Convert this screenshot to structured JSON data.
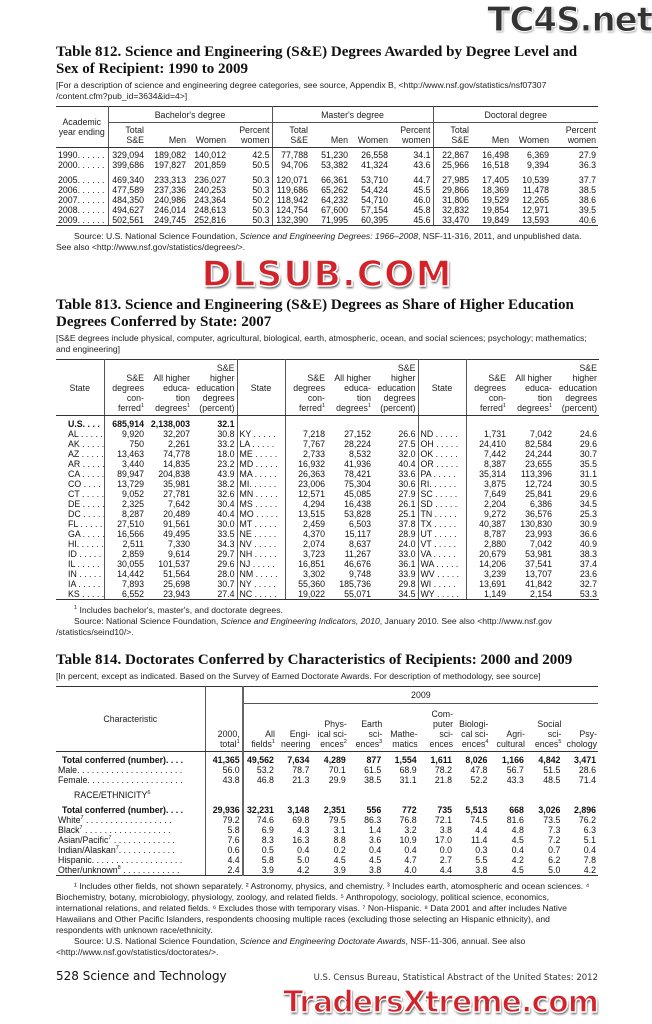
{
  "watermarks": {
    "top": "TC4S.net",
    "middle": "DLSUB.COM",
    "bottom": "TradersXtreme.com"
  },
  "t812": {
    "title": "Table 812. Science and Engineering (S&E) Degrees Awarded by Degree Level and Sex of Recipient: 1990 to 2009",
    "note": "[For a description of science and engineering degree categories, see source, Appendix B, <http://www.nsf.gov/statistics/nsf07307 /content.cfm?pub_id=3634&id=4>]",
    "stub_header": "Academic year ending",
    "groups": [
      "Bachelor's degree",
      "Master's degree",
      "Doctoral degree"
    ],
    "subcols": [
      "Total S&E",
      "Men",
      "Women",
      "Percent women"
    ],
    "rows": [
      [
        "1990. . . . . .",
        "329,094",
        "189,082",
        "140,012",
        "42.5",
        "77,788",
        "51,230",
        "26,558",
        "34.1",
        "22,867",
        "16,498",
        "6,369",
        "27.9"
      ],
      [
        "2000. . . . . .",
        "399,686",
        "197,827",
        "201,859",
        "50.5",
        "94,706",
        "53,382",
        "41,324",
        "43.6",
        "25,966",
        "16,518",
        "9,394",
        "36.3"
      ],
      [
        "2005. . . . . .",
        "469,340",
        "233,313",
        "236,027",
        "50.3",
        "120,071",
        "66,361",
        "53,710",
        "44.7",
        "27,985",
        "17,405",
        "10,539",
        "37.7"
      ],
      [
        "2006. . . . . .",
        "477,589",
        "237,336",
        "240,253",
        "50.3",
        "119,686",
        "65,262",
        "54,424",
        "45.5",
        "29,866",
        "18,369",
        "11,478",
        "38.5"
      ],
      [
        "2007. . . . . .",
        "484,350",
        "240,986",
        "243,364",
        "50.2",
        "118,942",
        "64,232",
        "54,710",
        "46.0",
        "31,806",
        "19,529",
        "12,265",
        "38.6"
      ],
      [
        "2008. . . . . .",
        "494,627",
        "246,014",
        "248,613",
        "50.3",
        "124,754",
        "67,600",
        "57,154",
        "45.8",
        "32,832",
        "19,854",
        "12,971",
        "39.5"
      ],
      [
        "2009. . . . . .",
        "502,561",
        "249,745",
        "252,816",
        "50.3",
        "132,390",
        "71,995",
        "60,395",
        "45.6",
        "33,470",
        "19,849",
        "13,593",
        "40.6"
      ]
    ],
    "source_prefix": "Source: U.S. National Science Foundation, ",
    "source_title": "Science and Engineering Degrees: 1966–2008",
    "source_suffix": ", NSF-11-316, 2011, and unpublished data. See also <http://www.nsf.gov/statistics/degrees/>."
  },
  "t813": {
    "title": "Table 813. Science and Engineering (S&E) Degrees as Share of Higher Education Degrees Conferred by State: 2007",
    "note": "[S&E degrees include physical, computer, agricultural, biological, earth, atmospheric, ocean, and social sciences; psychology; mathematics; and engineering]",
    "headers": {
      "state": "State",
      "se": "S&E degrees con- ferred",
      "all": "All higher educa- tion degrees",
      "pct": "S&E higher education degrees (percent)",
      "fn": "1"
    },
    "us": [
      "U.S. . . .",
      "685,914",
      "2,138,003",
      "32.1"
    ],
    "rows": [
      [
        "AL . . . . .",
        "9,920",
        "32,207",
        "30.8",
        "KY . . . . .",
        "7,218",
        "27,152",
        "26.6",
        "ND . . . . .",
        "1,731",
        "7,042",
        "24.6"
      ],
      [
        "AK . . . . .",
        "750",
        "2,261",
        "33.2",
        "LA . . . . .",
        "7,767",
        "28,224",
        "27.5",
        "OH . . . . .",
        "24,410",
        "82,584",
        "29.6"
      ],
      [
        "AZ . . . . .",
        "13,463",
        "74,778",
        "18.0",
        "ME . . . . .",
        "2,733",
        "8,532",
        "32.0",
        "OK . . . . .",
        "7,442",
        "24,244",
        "30.7"
      ],
      [
        "AR . . . . .",
        "3,440",
        "14,835",
        "23.2",
        "MD . . . . .",
        "16,932",
        "41,936",
        "40.4",
        "OR . . . . .",
        "8,387",
        "23,655",
        "35.5"
      ],
      [
        "CA . . . . .",
        "89,947",
        "204,838",
        "43.9",
        "MA . . . . .",
        "26,363",
        "78,421",
        "33.6",
        "PA . . . . .",
        "35,314",
        "113,396",
        "31.1"
      ],
      [
        "CO . . . . .",
        "13,729",
        "35,981",
        "38.2",
        "MI. . . . . .",
        "23,006",
        "75,304",
        "30.6",
        "RI. . . . . .",
        "3,875",
        "12,724",
        "30.5"
      ],
      [
        "CT . . . . .",
        "9,052",
        "27,781",
        "32.6",
        "MN . . . . .",
        "12,571",
        "45,085",
        "27.9",
        "SC . . . . .",
        "7,649",
        "25,841",
        "29.6"
      ],
      [
        "DE . . . . .",
        "2,325",
        "7,642",
        "30.4",
        "MS . . . . .",
        "4,294",
        "16,438",
        "26.1",
        "SD . . . . .",
        "2,204",
        "6,386",
        "34.5"
      ],
      [
        "DC . . . . .",
        "8,287",
        "20,489",
        "40.4",
        "MO . . . . .",
        "13,515",
        "53,828",
        "25.1",
        "TN . . . . .",
        "9,272",
        "36,576",
        "25.3"
      ],
      [
        "FL . . . . .",
        "27,510",
        "91,561",
        "30.0",
        "MT . . . . .",
        "2,459",
        "6,503",
        "37.8",
        "TX . . . . .",
        "40,387",
        "130,830",
        "30.9"
      ],
      [
        "GA . . . . .",
        "16,566",
        "49,495",
        "33.5",
        "NE . . . . .",
        "4,370",
        "15,117",
        "28.9",
        "UT . . . . .",
        "8,787",
        "23,993",
        "36.6"
      ],
      [
        "HI. . . . . .",
        "2,511",
        "7,330",
        "34.3",
        "NV . . . . .",
        "2,074",
        "8,637",
        "24.0",
        "VT . . . . .",
        "2,880",
        "7,042",
        "40.9"
      ],
      [
        "ID . . . . .",
        "2,859",
        "9,614",
        "29.7",
        "NH . . . . .",
        "3,723",
        "11,267",
        "33.0",
        "VA . . . . .",
        "20,679",
        "53,981",
        "38.3"
      ],
      [
        "IL . . . . .",
        "30,055",
        "101,537",
        "29.6",
        "NJ . . . . .",
        "16,851",
        "46,676",
        "36.1",
        "WA . . . . .",
        "14,206",
        "37,541",
        "37.4"
      ],
      [
        "IN . . . . .",
        "14,442",
        "51,564",
        "28.0",
        "NM . . . . .",
        "3,302",
        "9,748",
        "33.9",
        "WV . . . . .",
        "3,239",
        "13,707",
        "23.6"
      ],
      [
        "IA . . . . .",
        "7,893",
        "25,698",
        "30.7",
        "NY . . . . .",
        "55,360",
        "185,736",
        "29.8",
        "WI . . . . .",
        "13,691",
        "41,842",
        "32.7"
      ],
      [
        "KS . . . . .",
        "6,552",
        "23,943",
        "27.4",
        "NC . . . . .",
        "19,022",
        "55,071",
        "34.5",
        "WY . . . . .",
        "1,149",
        "2,154",
        "53.3"
      ]
    ],
    "footnote": "Includes bachelor's, master's, and doctorate degrees.",
    "footnote_mark": "1",
    "source_prefix": "Source: National Science Foundation, ",
    "source_title": "Science and Engineering Indicators, 2010",
    "source_suffix": ", January 2010. See also <http://www.nsf.gov /statistics/seind10/>."
  },
  "t814": {
    "title": "Table 814. Doctorates Conferred by Characteristics of Recipients: 2000 and 2009",
    "note": "[In percent, except as indicated. Based on the Survey of Earned Doctorate Awards. For description of methodology, see source]",
    "stub_header": "Characteristic",
    "year_group": "2009",
    "cols": [
      {
        "label": "2000, total",
        "fn": "1"
      },
      {
        "label": "All fields",
        "fn": "1"
      },
      {
        "label": "Engi- neering",
        "fn": ""
      },
      {
        "label": "Phys- ical sci- ences",
        "fn": "2"
      },
      {
        "label": "Earth sci- ences",
        "fn": "3"
      },
      {
        "label": "Mathe- matics",
        "fn": ""
      },
      {
        "label": "Com- puter sci- ences",
        "fn": ""
      },
      {
        "label": "Biologi- cal sci- ences",
        "fn": "4"
      },
      {
        "label": "Agri- cultural",
        "fn": ""
      },
      {
        "label": "Social sci- ences",
        "fn": "5"
      },
      {
        "label": "Psy- chology",
        "fn": ""
      }
    ],
    "rows": [
      {
        "label": "Total conferred (number). . . .",
        "bold": true,
        "values": [
          "41,365",
          "49,562",
          "7,634",
          "4,289",
          "877",
          "1,554",
          "1,611",
          "8,026",
          "1,166",
          "4,842",
          "3,471"
        ]
      },
      {
        "label": "Male. . . . . . . . . . . . . . . . . . . . . .",
        "values": [
          "56.0",
          "53.2",
          "78.7",
          "70.1",
          "61.5",
          "68.9",
          "78.2",
          "47.8",
          "56.7",
          "51.5",
          "28.6"
        ]
      },
      {
        "label": "Female. . . . . . . . . . . . . . . . . . . .",
        "values": [
          "43.8",
          "46.8",
          "21.3",
          "29.9",
          "38.5",
          "31.1",
          "21.8",
          "52.2",
          "43.3",
          "48.5",
          "71.4"
        ]
      },
      {
        "label": "RACE/ETHNICITY",
        "fn": "6",
        "section": true,
        "values": []
      },
      {
        "label": "Total conferred (number). . . .",
        "bold": true,
        "values": [
          "29,936",
          "32,231",
          "3,148",
          "2,351",
          "556",
          "772",
          "735",
          "5,513",
          "668",
          "3,026",
          "2,896"
        ]
      },
      {
        "label": "White",
        "fn": "7",
        "dots": " . . . . . . . . . . . . . . . . . .",
        "values": [
          "79.2",
          "74.6",
          "69.8",
          "79.5",
          "86.3",
          "76.8",
          "72.1",
          "74.5",
          "81.6",
          "73.5",
          "76.2"
        ]
      },
      {
        "label": "Black",
        "fn": "7",
        "dots": " . . . . . . . . . . . . . . . . . .",
        "values": [
          "5.8",
          "6.9",
          "4.3",
          "3.1",
          "1.4",
          "3.2",
          "3.8",
          "4.4",
          "4.8",
          "7.3",
          "6.3"
        ]
      },
      {
        "label": "Asian/Pacific",
        "fn": "7",
        "dots": " . . . . . . . . . . . . .",
        "values": [
          "7.6",
          "8.3",
          "16.3",
          "8.8",
          "3.6",
          "10.9",
          "17.0",
          "11.4",
          "4.5",
          "7.2",
          "5.1"
        ]
      },
      {
        "label": "Indian/Alaskan",
        "fn": "7",
        "dots": ". . . . . . . . . . . .",
        "values": [
          "0.6",
          "0.5",
          "0.4",
          "0.2",
          "0.4",
          "0.4",
          "0.0",
          "0.3",
          "0.4",
          "0.7",
          "0.4"
        ]
      },
      {
        "label": "Hispanic. . . . . . . . . . . . . . . . . . .",
        "values": [
          "4.4",
          "5.8",
          "5.0",
          "4.5",
          "4.5",
          "4.7",
          "2.7",
          "5.5",
          "4.2",
          "6.2",
          "7.8"
        ]
      },
      {
        "label": "Other/unknown",
        "fn": "8",
        "dots": " . . . . . . . . . . . .",
        "values": [
          "2.4",
          "3.9",
          "4.2",
          "3.9",
          "3.8",
          "4.0",
          "4.4",
          "3.8",
          "4.5",
          "5.0",
          "4.2"
        ]
      }
    ],
    "footnotes": "¹ Includes other fields, not shown separately. ² Astronomy, physics, and chemistry. ³ Includes earth, atomospheric and ocean sciences. ⁴ Biochemistry, botany, microbiology, physiology, zoology, and related fields. ⁵ Anthropology, sociology, political science, economics, international relations, and related fields. ⁶ Excludes those with temporary visas. ⁷ Non-Hispanic. ⁸ Data 2001 and after includes Native Hawaiians and Other Pacific Islanders, respondents choosing multiple races (excluding those selecting an Hispanic ethnicity), and respondents with unknown race/ethnicity.",
    "source_prefix": "Source: U.S. National Science Foundation, ",
    "source_title": "Science and Engineering Doctorate Awards",
    "source_suffix": ", NSF-11-306, annual. See also <http://www.nsf.gov/statistics/doctorates/>."
  },
  "footer": {
    "page": "528  Science and Technology",
    "publication": "U.S. Census Bureau, Statistical Abstract of the United States: 2012"
  }
}
